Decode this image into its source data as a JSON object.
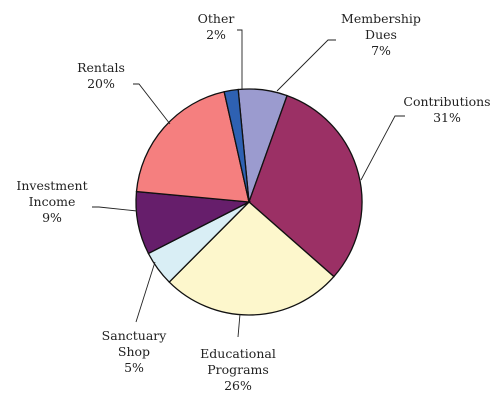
{
  "chart_data": {
    "type": "pie",
    "title": "",
    "legend": "none",
    "slices": [
      {
        "label_lines": [
          "Membership",
          "Dues"
        ],
        "pct_label": "7%",
        "value": 7,
        "color": "#9b9bcf"
      },
      {
        "label_lines": [
          "Contributions"
        ],
        "pct_label": "31%",
        "value": 31,
        "color": "#9b3065"
      },
      {
        "label_lines": [
          "Educational",
          "Programs"
        ],
        "pct_label": "26%",
        "value": 26,
        "color": "#fdf7cc"
      },
      {
        "label_lines": [
          "Sanctuary",
          "Shop"
        ],
        "pct_label": "5%",
        "value": 5,
        "color": "#d9eef5"
      },
      {
        "label_lines": [
          "Investment",
          "Income"
        ],
        "pct_label": "9%",
        "value": 9,
        "color": "#661e6b"
      },
      {
        "label_lines": [
          "Rentals"
        ],
        "pct_label": "20%",
        "value": 20,
        "color": "#f57f7f"
      },
      {
        "label_lines": [
          "Other"
        ],
        "pct_label": "2%",
        "value": 2,
        "color": "#2e61b2"
      }
    ]
  }
}
